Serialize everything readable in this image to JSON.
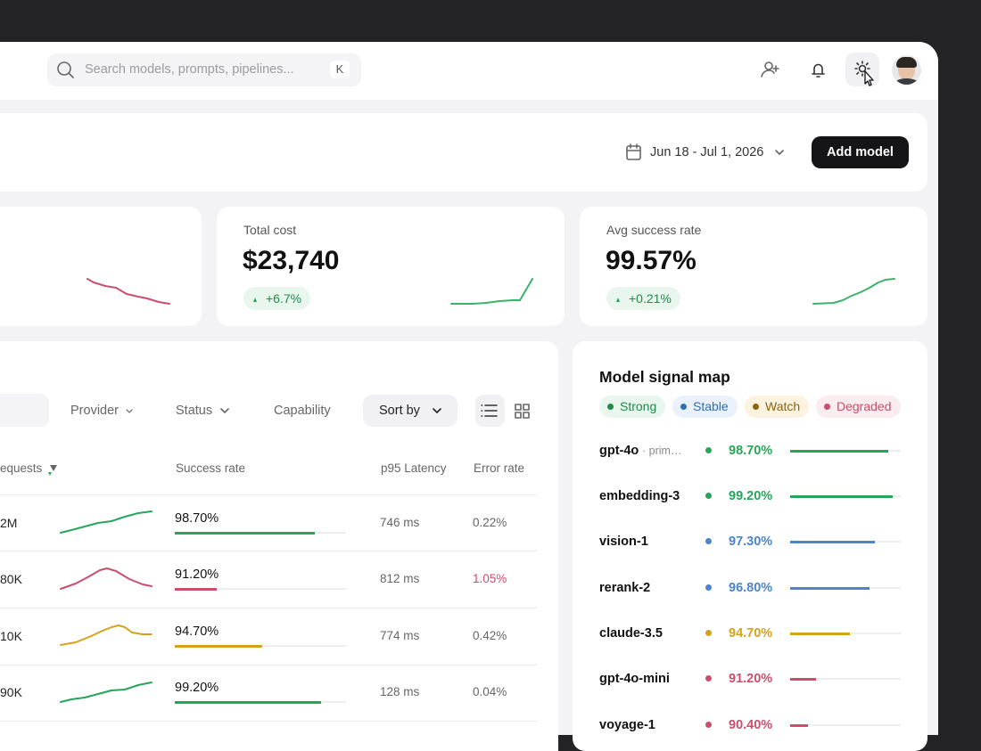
{
  "search": {
    "placeholder": "Search models, prompts, pipelines...",
    "shortcut": "K"
  },
  "toolbar": {
    "date_range": "Jun 18 - Jul 1, 2026",
    "add_button": "Add model"
  },
  "stats": [
    {
      "label": "Total cost",
      "value": "$23,740",
      "change": "+6.7%"
    },
    {
      "label": "Avg success rate",
      "value": "99.57%",
      "change": "+0.21%"
    }
  ],
  "filters": [
    "Provider",
    "Status",
    "Capability"
  ],
  "sort": "Sort by",
  "table": {
    "headers": [
      "equests",
      "Success rate",
      "p95 Latency",
      "Error rate"
    ],
    "rows": [
      {
        "requests": "2M",
        "success": "98.70%",
        "latency": "746 ms",
        "error": "0.22%",
        "color": "#27a55a"
      },
      {
        "requests": "80K",
        "success": "91.20%",
        "latency": "812 ms",
        "error": "1.05%",
        "color": "#c94f6d",
        "error_color": "#c94f6d"
      },
      {
        "requests": "10K",
        "success": "94.70%",
        "latency": "774 ms",
        "error": "0.42%",
        "color": "#d6a21c"
      },
      {
        "requests": "90K",
        "success": "99.20%",
        "latency": "128 ms",
        "error": "0.04%",
        "color": "#27a55a"
      }
    ]
  },
  "signal_map": {
    "title": "Model signal map",
    "legend": [
      {
        "name": "Strong",
        "color": "#1f8a4c",
        "bg": "#e9f6ee"
      },
      {
        "name": "Stable",
        "color": "#2f6fb5",
        "bg": "#eaf1fa"
      },
      {
        "name": "Watch",
        "color": "#8a6410",
        "bg": "#fbf3df"
      },
      {
        "name": "Degraded",
        "color": "#c94f6d",
        "bg": "#fbecf0"
      }
    ],
    "rows": [
      {
        "name": "gpt-4o",
        "note": "· prim…",
        "rate": "98.70%",
        "color": "#27a55a"
      },
      {
        "name": "embedding-3",
        "rate": "99.20%",
        "color": "#27a55a"
      },
      {
        "name": "vision-1",
        "rate": "97.30%",
        "color": "#4a86c8"
      },
      {
        "name": "rerank-2",
        "rate": "96.80%",
        "color": "#4a86c8"
      },
      {
        "name": "claude-3.5",
        "rate": "94.70%",
        "color": "#d6a21c"
      },
      {
        "name": "gpt-4o-mini",
        "rate": "91.20%",
        "color": "#c94f6d"
      },
      {
        "name": "voyage-1",
        "rate": "90.40%",
        "color": "#c94f6d"
      }
    ]
  }
}
